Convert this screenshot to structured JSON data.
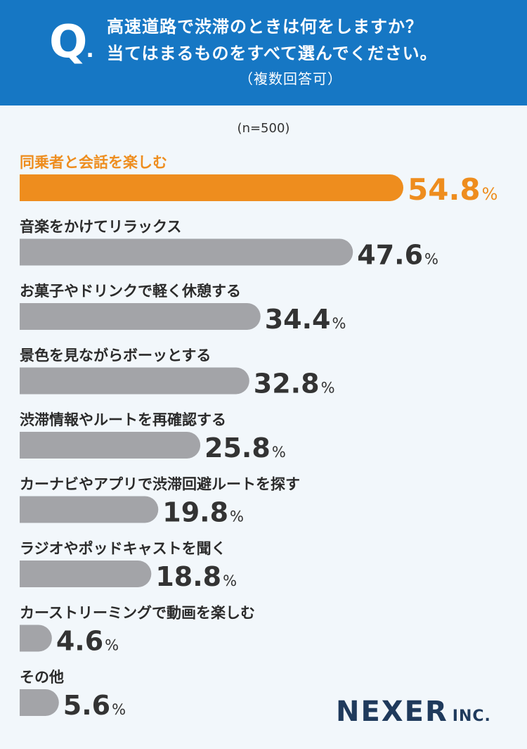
{
  "header": {
    "q_mark": "Q",
    "q_dot": ".",
    "line1": "高速道路で渋滞のときは何をしますか？",
    "line2": "当てはまるものをすべて選んでください。",
    "line3": "（複数回答可）"
  },
  "sample_label": "(n=500)",
  "logo": {
    "main": "NEXER",
    "suffix": "INC."
  },
  "colors": {
    "header_bg": "#1677c4",
    "highlight": "#ee8d1e",
    "bar": "#a3a4a8",
    "value_text": "#333333"
  },
  "chart_data": {
    "type": "bar",
    "orientation": "horizontal",
    "title": "高速道路で渋滞のときは何をしますか？当てはまるものをすべて選んでください。（複数回答可）",
    "xlabel": "",
    "ylabel": "",
    "unit": "%",
    "xlim": [
      0,
      100
    ],
    "categories": [
      "同乗者と会話を楽しむ",
      "音楽をかけてリラックス",
      "お菓子やドリンクで軽く休憩する",
      "景色を見ながらボーッとする",
      "渋滞情報やルートを再確認する",
      "カーナビやアプリで渋滞回避ルートを探す",
      "ラジオやポッドキャストを聞く",
      "カーストリーミングで動画を楽しむ",
      "その他"
    ],
    "values": [
      54.8,
      47.6,
      34.4,
      32.8,
      25.8,
      19.8,
      18.8,
      4.6,
      5.6
    ],
    "value_labels": [
      "54.8",
      "47.6",
      "34.4",
      "32.8",
      "25.8",
      "19.8",
      "18.8",
      "4.6",
      "5.6"
    ],
    "highlight_index": 0,
    "grid": false,
    "legend": "none"
  }
}
